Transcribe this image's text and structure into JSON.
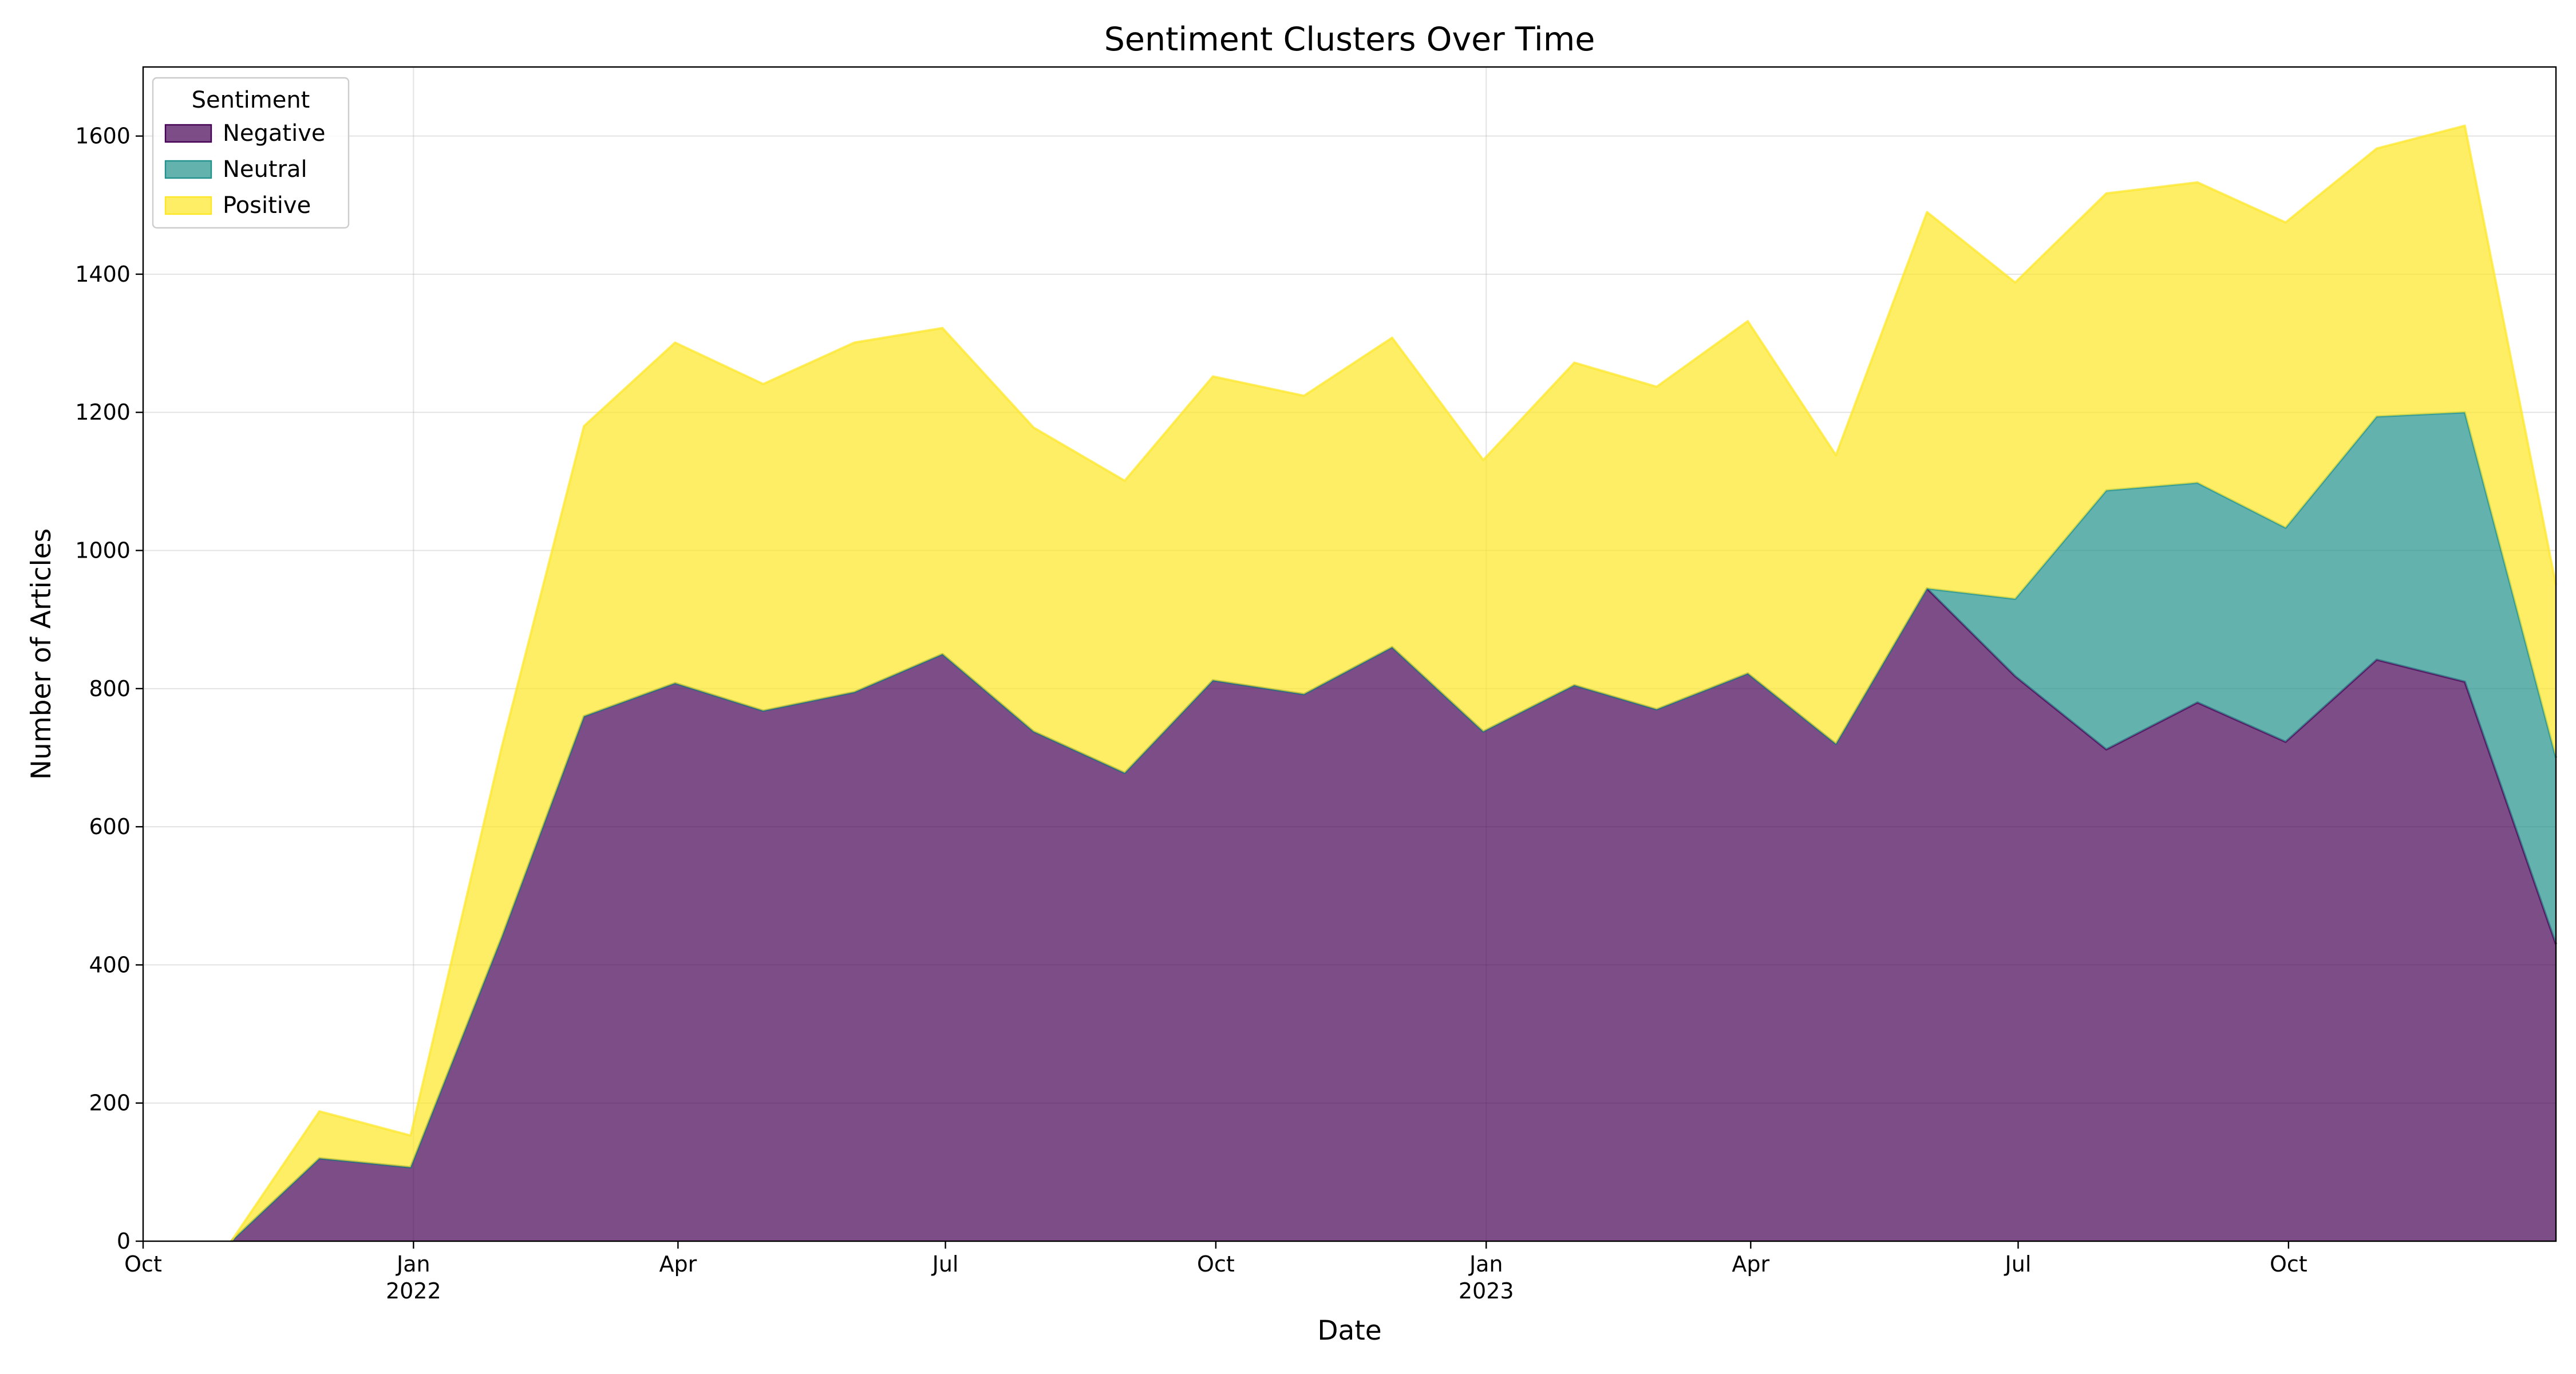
{
  "chart_data": {
    "type": "area",
    "stacked": true,
    "title": "Sentiment Clusters Over Time",
    "xlabel": "Date",
    "ylabel": "Number of Articles",
    "x": [
      "2021-10-31",
      "2021-11-30",
      "2021-12-31",
      "2022-01-31",
      "2022-02-28",
      "2022-03-31",
      "2022-04-30",
      "2022-05-31",
      "2022-06-30",
      "2022-07-31",
      "2022-08-31",
      "2022-09-30",
      "2022-10-31",
      "2022-11-30",
      "2022-12-31",
      "2023-01-31",
      "2023-02-28",
      "2023-03-31",
      "2023-04-30",
      "2023-05-31",
      "2023-06-30",
      "2023-07-31",
      "2023-08-31",
      "2023-09-30",
      "2023-10-31",
      "2023-11-30",
      "2023-12-31"
    ],
    "xlim": [
      "2021-10-01",
      "2023-12-31"
    ],
    "ylim": [
      0,
      1700
    ],
    "yticks": [
      0,
      200,
      400,
      600,
      800,
      1000,
      1200,
      1400,
      1600
    ],
    "xticks": [
      {
        "date": "2021-10-01",
        "label": "Oct",
        "year": ""
      },
      {
        "date": "2022-01-01",
        "label": "Jan",
        "year": "2022"
      },
      {
        "date": "2022-04-01",
        "label": "Apr",
        "year": ""
      },
      {
        "date": "2022-07-01",
        "label": "Jul",
        "year": ""
      },
      {
        "date": "2022-10-01",
        "label": "Oct",
        "year": ""
      },
      {
        "date": "2023-01-01",
        "label": "Jan",
        "year": "2023"
      },
      {
        "date": "2023-04-01",
        "label": "Apr",
        "year": ""
      },
      {
        "date": "2023-07-01",
        "label": "Jul",
        "year": ""
      },
      {
        "date": "2023-10-01",
        "label": "Oct",
        "year": ""
      }
    ],
    "grid": true,
    "legend": {
      "title": "Sentiment",
      "position": "top-left"
    },
    "series": [
      {
        "name": "Negative",
        "color": "#440154",
        "values": [
          0,
          120,
          107,
          440,
          760,
          808,
          768,
          795,
          850,
          738,
          678,
          812,
          792,
          860,
          738,
          805,
          770,
          822,
          720,
          945,
          818,
          712,
          780,
          723,
          842,
          810,
          430
        ]
      },
      {
        "name": "Neutral",
        "color": "#21918c",
        "values": [
          0,
          0,
          0,
          0,
          0,
          0,
          0,
          0,
          0,
          0,
          0,
          0,
          0,
          0,
          0,
          0,
          0,
          0,
          0,
          0,
          112,
          375,
          318,
          310,
          352,
          390,
          270
        ]
      },
      {
        "name": "Positive",
        "color": "#fde725",
        "values": [
          0,
          68,
          46,
          275,
          420,
          493,
          473,
          506,
          472,
          440,
          423,
          440,
          432,
          448,
          393,
          467,
          467,
          510,
          418,
          545,
          458,
          430,
          435,
          442,
          388,
          415,
          250
        ]
      }
    ]
  }
}
